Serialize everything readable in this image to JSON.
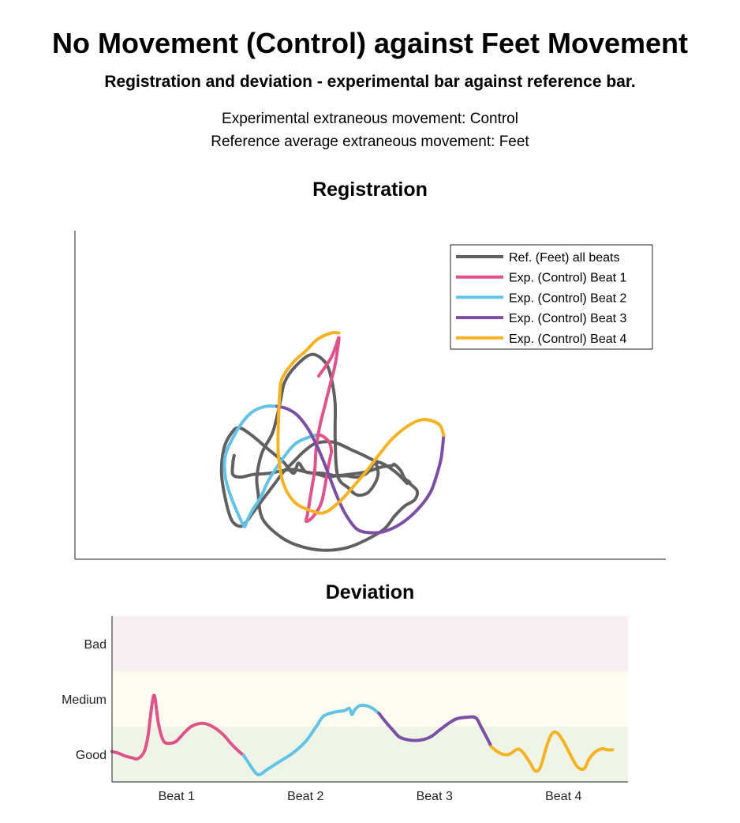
{
  "header": {
    "title": "No Movement (Control) against Feet Movement",
    "subtitle": "Registration and deviation - experimental bar against reference bar.",
    "info_line_1": "Experimental extraneous movement: Control",
    "info_line_2": "Reference average extraneous movement: Feet"
  },
  "chart_data": [
    {
      "type": "line",
      "title": "Registration",
      "grid": false,
      "axes_ticks": false,
      "legend_position": "top-right",
      "legend": [
        "Ref. (Feet) all beats",
        "Exp. (Control) Beat 1",
        "Exp. (Control) Beat 2",
        "Exp. (Control) Beat 3",
        "Exp. (Control) Beat 4"
      ],
      "series": [
        {
          "name": "Ref. (Feet) all beats",
          "color": "#606060",
          "points": [
            [
              23,
              12
            ],
            [
              22,
              6
            ],
            [
              22,
              -3
            ],
            [
              28,
              -5
            ],
            [
              38,
              -3
            ],
            [
              51,
              -2
            ],
            [
              68,
              1
            ],
            [
              80,
              -1
            ],
            [
              90,
              -3
            ],
            [
              97,
              -5
            ],
            [
              104,
              -4
            ],
            [
              113,
              -3
            ],
            [
              127,
              -1
            ],
            [
              140,
              3
            ],
            [
              148,
              4
            ],
            [
              150,
              5
            ],
            [
              155,
              0
            ],
            [
              158,
              -6
            ],
            [
              162,
              -9
            ],
            [
              162,
              -10
            ],
            [
              168,
              -16
            ],
            [
              166,
              -23
            ],
            [
              158,
              -28
            ],
            [
              150,
              -36
            ],
            [
              142,
              -46
            ],
            [
              127,
              -55
            ],
            [
              112,
              -61
            ],
            [
              96,
              -63
            ],
            [
              80,
              -61
            ],
            [
              64,
              -55
            ],
            [
              50,
              -44
            ],
            [
              44,
              -34
            ],
            [
              42,
              -18
            ],
            [
              41,
              -5
            ],
            [
              45,
              14
            ],
            [
              53,
              29
            ],
            [
              57,
              43
            ],
            [
              60,
              57
            ],
            [
              63,
              70
            ],
            [
              71,
              82
            ],
            [
              84,
              92
            ],
            [
              95,
              86
            ],
            [
              100,
              73
            ],
            [
              103,
              53
            ],
            [
              103,
              26
            ],
            [
              105,
              -4
            ],
            [
              114,
              -14
            ],
            [
              120,
              -19
            ],
            [
              128,
              -18
            ],
            [
              134,
              -11
            ],
            [
              137,
              -3
            ],
            [
              136,
              4
            ],
            [
              134,
              6
            ],
            [
              128,
              -2
            ],
            [
              120,
              -5
            ],
            [
              112,
              -4
            ],
            [
              104,
              -4
            ],
            [
              93,
              -2
            ],
            [
              80,
              -1
            ],
            [
              74,
              6
            ],
            [
              70,
              -2
            ],
            [
              62,
              7
            ],
            [
              50,
              17
            ],
            [
              37,
              28
            ],
            [
              27,
              34
            ],
            [
              21,
              30
            ],
            [
              15,
              18
            ],
            [
              13,
              -2
            ],
            [
              16,
              -22
            ],
            [
              21,
              -39
            ],
            [
              28,
              -44
            ],
            [
              33,
              -40
            ],
            [
              38,
              -33
            ],
            [
              44,
              -25
            ],
            [
              50,
              -17
            ],
            [
              56,
              -9
            ],
            [
              62,
              -1
            ],
            [
              70,
              7
            ],
            [
              78,
              15
            ],
            [
              86,
              21
            ],
            [
              95,
              23
            ],
            [
              104,
              22
            ],
            [
              115,
              17
            ],
            [
              126,
              12
            ],
            [
              134,
              8
            ],
            [
              142,
              5
            ],
            [
              152,
              -2
            ],
            [
              160,
              -10
            ]
          ]
        },
        {
          "name": "Exp. (Control) Beat 1",
          "color": "#e0528a",
          "points": [
            [
              90,
              75
            ],
            [
              99,
              88
            ],
            [
              103,
              97
            ],
            [
              106,
              105
            ],
            [
              103,
              84
            ],
            [
              99,
              68
            ],
            [
              95,
              52
            ],
            [
              91,
              36
            ],
            [
              88,
              18
            ],
            [
              87,
              2
            ],
            [
              85,
              -11
            ],
            [
              83,
              -23
            ],
            [
              81,
              -35
            ],
            [
              80,
              -40
            ],
            [
              84,
              -38
            ],
            [
              88,
              -33
            ],
            [
              91,
              -28
            ],
            [
              93,
              -22
            ],
            [
              95,
              -12
            ],
            [
              97,
              0
            ],
            [
              99,
              10
            ],
            [
              100,
              16
            ],
            [
              98,
              23
            ],
            [
              92,
              28
            ],
            [
              87,
              28
            ]
          ]
        },
        {
          "name": "Exp. (Control) Beat 2",
          "color": "#62c3e6",
          "points": [
            [
              87,
              28
            ],
            [
              78,
              25
            ],
            [
              71,
              21
            ],
            [
              64,
              13
            ],
            [
              57,
              3
            ],
            [
              50,
              -8
            ],
            [
              44,
              -21
            ],
            [
              37,
              -32
            ],
            [
              33,
              -40
            ],
            [
              31,
              -44
            ],
            [
              26,
              -34
            ],
            [
              21,
              -22
            ],
            [
              16,
              -5
            ],
            [
              16,
              12
            ],
            [
              22,
              26
            ],
            [
              30,
              39
            ],
            [
              38,
              47
            ],
            [
              48,
              51
            ],
            [
              57,
              51
            ]
          ]
        },
        {
          "name": "Exp. (Control) Beat 3",
          "color": "#7b4fa5",
          "points": [
            [
              57,
              51
            ],
            [
              65,
              49
            ],
            [
              73,
              44
            ],
            [
              81,
              34
            ],
            [
              88,
              21
            ],
            [
              94,
              7
            ],
            [
              99,
              -6
            ],
            [
              104,
              -19
            ],
            [
              111,
              -34
            ],
            [
              120,
              -46
            ],
            [
              130,
              -49
            ],
            [
              142,
              -48
            ],
            [
              155,
              -42
            ],
            [
              168,
              -31
            ],
            [
              178,
              -18
            ],
            [
              183,
              -5
            ],
            [
              187,
              10
            ],
            [
              189,
              28
            ]
          ]
        },
        {
          "name": "Exp. (Control) Beat 4",
          "color": "#f5b323",
          "points": [
            [
              189,
              28
            ],
            [
              186,
              36
            ],
            [
              178,
              40
            ],
            [
              170,
              40
            ],
            [
              160,
              35
            ],
            [
              148,
              25
            ],
            [
              138,
              13
            ],
            [
              128,
              0
            ],
            [
              117,
              -13
            ],
            [
              107,
              -24
            ],
            [
              95,
              -33
            ],
            [
              85,
              -32
            ],
            [
              71,
              -25
            ],
            [
              62,
              -10
            ],
            [
              58,
              13
            ],
            [
              58,
              36
            ],
            [
              59,
              59
            ],
            [
              61,
              73
            ],
            [
              70,
              86
            ],
            [
              80,
              95
            ],
            [
              89,
              104
            ],
            [
              100,
              109
            ],
            [
              106,
              109
            ]
          ]
        }
      ]
    },
    {
      "type": "line",
      "title": "Deviation",
      "categories": [
        "Beat 1",
        "Beat 2",
        "Beat 3",
        "Beat 4"
      ],
      "y_categories": [
        "Good",
        "Medium",
        "Bad"
      ],
      "bands": [
        {
          "label": "Good",
          "range": [
            0,
            1
          ],
          "color": "#eef5e6"
        },
        {
          "label": "Medium",
          "range": [
            1,
            2
          ],
          "color": "#fdfcef"
        },
        {
          "label": "Bad",
          "range": [
            2,
            3
          ],
          "color": "#f9eff0"
        }
      ],
      "xlim": [
        0,
        4
      ],
      "ylim": [
        0,
        3
      ],
      "series": [
        {
          "name": "Beat 1",
          "color": "#e0528a",
          "points": [
            [
              0.0,
              0.55
            ],
            [
              0.05,
              0.52
            ],
            [
              0.1,
              0.47
            ],
            [
              0.15,
              0.44
            ],
            [
              0.2,
              0.42
            ],
            [
              0.25,
              0.55
            ],
            [
              0.28,
              0.85
            ],
            [
              0.31,
              1.4
            ],
            [
              0.33,
              1.55
            ],
            [
              0.36,
              1.05
            ],
            [
              0.4,
              0.74
            ],
            [
              0.45,
              0.7
            ],
            [
              0.5,
              0.74
            ],
            [
              0.56,
              0.89
            ],
            [
              0.62,
              1.01
            ],
            [
              0.7,
              1.06
            ],
            [
              0.78,
              1.0
            ],
            [
              0.86,
              0.86
            ],
            [
              0.92,
              0.7
            ],
            [
              0.98,
              0.56
            ],
            [
              1.02,
              0.48
            ]
          ]
        },
        {
          "name": "Beat 2",
          "color": "#62c3e6",
          "points": [
            [
              1.02,
              0.48
            ],
            [
              1.06,
              0.34
            ],
            [
              1.1,
              0.2
            ],
            [
              1.14,
              0.13
            ],
            [
              1.2,
              0.22
            ],
            [
              1.3,
              0.37
            ],
            [
              1.4,
              0.52
            ],
            [
              1.5,
              0.73
            ],
            [
              1.58,
              0.99
            ],
            [
              1.64,
              1.19
            ],
            [
              1.72,
              1.26
            ],
            [
              1.8,
              1.29
            ],
            [
              1.84,
              1.33
            ],
            [
              1.86,
              1.22
            ],
            [
              1.88,
              1.3
            ],
            [
              1.92,
              1.38
            ],
            [
              1.97,
              1.38
            ],
            [
              2.02,
              1.33
            ],
            [
              2.07,
              1.24
            ]
          ]
        },
        {
          "name": "Beat 3",
          "color": "#7b4fa5",
          "points": [
            [
              2.07,
              1.24
            ],
            [
              2.12,
              1.09
            ],
            [
              2.18,
              0.93
            ],
            [
              2.23,
              0.81
            ],
            [
              2.3,
              0.76
            ],
            [
              2.36,
              0.75
            ],
            [
              2.42,
              0.77
            ],
            [
              2.48,
              0.83
            ],
            [
              2.54,
              0.94
            ],
            [
              2.61,
              1.06
            ],
            [
              2.67,
              1.14
            ],
            [
              2.75,
              1.17
            ],
            [
              2.82,
              1.16
            ],
            [
              2.86,
              1.0
            ],
            [
              2.91,
              0.78
            ],
            [
              2.94,
              0.64
            ]
          ]
        },
        {
          "name": "Beat 4",
          "color": "#f5b323",
          "points": [
            [
              2.94,
              0.64
            ],
            [
              2.98,
              0.56
            ],
            [
              3.03,
              0.5
            ],
            [
              3.08,
              0.5
            ],
            [
              3.14,
              0.59
            ],
            [
              3.18,
              0.55
            ],
            [
              3.24,
              0.35
            ],
            [
              3.28,
              0.2
            ],
            [
              3.32,
              0.26
            ],
            [
              3.37,
              0.65
            ],
            [
              3.41,
              0.87
            ],
            [
              3.45,
              0.89
            ],
            [
              3.5,
              0.73
            ],
            [
              3.56,
              0.46
            ],
            [
              3.61,
              0.27
            ],
            [
              3.66,
              0.24
            ],
            [
              3.7,
              0.42
            ],
            [
              3.75,
              0.55
            ],
            [
              3.8,
              0.6
            ],
            [
              3.84,
              0.58
            ],
            [
              3.88,
              0.58
            ]
          ]
        }
      ]
    }
  ]
}
